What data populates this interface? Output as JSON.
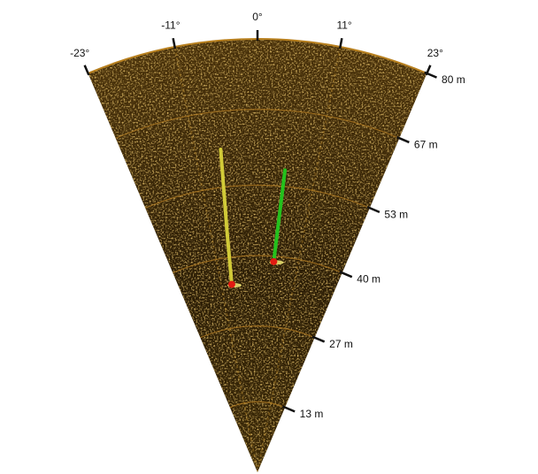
{
  "sonar": {
    "angle_labels": [
      "-23°",
      "-11°",
      "0°",
      "11°",
      "23°"
    ],
    "angle_values": [
      -23,
      -11,
      0,
      11,
      23
    ],
    "range_labels": [
      "13 m",
      "27 m",
      "40 m",
      "53 m",
      "67 m",
      "80 m"
    ],
    "range_values": [
      13,
      27,
      40,
      53,
      67,
      80
    ],
    "max_range": 80,
    "colors": {
      "background": "#ffffff",
      "fan_dark": "#1e1404",
      "fan_mid": "#5a3e0c",
      "speckle": "#c8922a",
      "ring": "#b07a22",
      "tick": "#111111",
      "track_1": "#d8d23a",
      "track_2": "#22c81e",
      "target_marker": "#e01a12"
    },
    "tracks": [
      {
        "name": "track-yellow",
        "points": [
          [
            -6.5,
            60
          ],
          [
            -7.2,
            45
          ],
          [
            -7.8,
            35
          ]
        ]
      },
      {
        "name": "track-green",
        "points": [
          [
            5.2,
            56
          ],
          [
            4.8,
            46
          ],
          [
            4.4,
            39
          ]
        ]
      }
    ]
  }
}
